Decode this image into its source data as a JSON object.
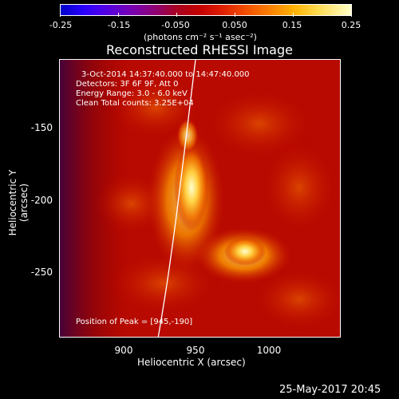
{
  "colorbar": {
    "tick_labels": [
      "-0.25",
      "-0.15",
      "-0.050",
      "0.050",
      "0.15",
      "0.25"
    ],
    "unit": "(photons cm⁻² s⁻¹ asec⁻²)",
    "range": [
      -0.25,
      0.25
    ]
  },
  "plot": {
    "title": "Reconstructed RHESSI Image",
    "info_lines": [
      "3-Oct-2014 14:37:40.000 to 14:47:40.000",
      "Detectors: 3F 6F 9F, Att 0",
      "Energy Range: 3.0 - 6.0 keV",
      "Clean     Total counts: 3.25E+04"
    ],
    "peak_label": "Position of Peak = [945,-190]",
    "xaxis": {
      "title": "Heliocentric X (arcsec)",
      "ticks": [
        "900",
        "950",
        "1000"
      ]
    },
    "yaxis": {
      "title": "Heliocentric Y (arcsec)",
      "ticks": [
        "-150",
        "-200",
        "-250"
      ]
    }
  },
  "footer": {
    "datestamp": "25-May-2017 20:45"
  }
}
